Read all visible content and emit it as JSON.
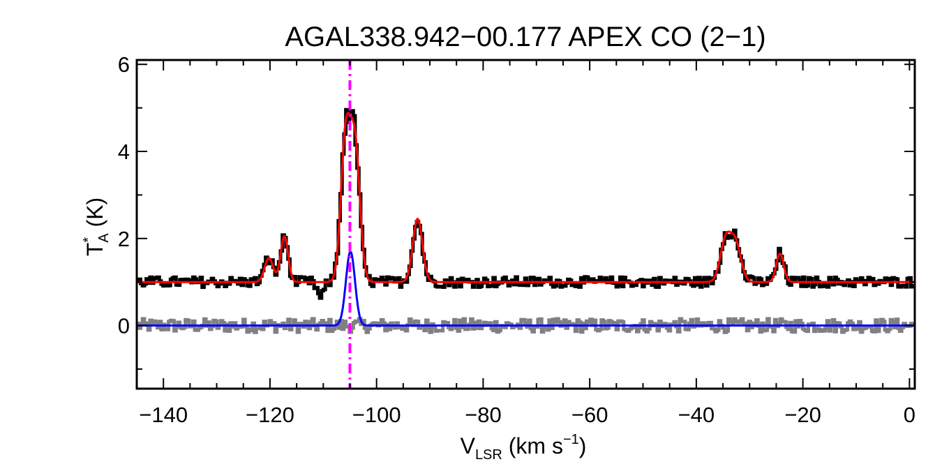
{
  "chart_data": {
    "type": "line",
    "title": "AGAL338.942−00.177  APEX CO (2−1)",
    "xlabel": {
      "main": "V",
      "sub": "LSR",
      "rest": " (km s",
      "sup": "−1",
      "close": ")"
    },
    "ylabel": {
      "main": "T",
      "sup": "*",
      "sub": "A",
      "rest": " (K)"
    },
    "xlim": [
      -145,
      1
    ],
    "ylim": [
      -1.45,
      6.1
    ],
    "xticks": [
      -140,
      -120,
      -100,
      -80,
      -60,
      -40,
      -20,
      0
    ],
    "xtick_labels": [
      "−140",
      "−120",
      "−100",
      "−80",
      "−60",
      "−40",
      "−20",
      "0"
    ],
    "yticks": [
      0,
      2,
      4,
      6
    ],
    "ytick_labels": [
      "0",
      "2",
      "4",
      "6"
    ],
    "vertical_marker": {
      "x": -105,
      "color": "#ff00ff",
      "style": "dash-dot"
    },
    "colors": {
      "spectrum": "#000000",
      "fit": "#ff0000",
      "residual": "#808080",
      "component": "#0000ff",
      "marker": "#ff00ff"
    },
    "series": [
      {
        "role": "spectrum",
        "offset": 1.0,
        "noise": 0.12,
        "components": [
          {
            "center": -120.2,
            "amp": 0.55,
            "sigma": 0.8
          },
          {
            "center": -117.3,
            "amp": 1.05,
            "sigma": 0.7
          },
          {
            "center": -105.8,
            "amp": 3.3,
            "sigma": 0.9
          },
          {
            "center": -104.0,
            "amp": 3.0,
            "sigma": 0.9
          },
          {
            "center": -92.3,
            "amp": 1.45,
            "sigma": 0.9
          },
          {
            "center": -34.5,
            "amp": 0.95,
            "sigma": 1.0
          },
          {
            "center": -32.6,
            "amp": 0.85,
            "sigma": 1.0
          },
          {
            "center": -24.3,
            "amp": 0.65,
            "sigma": 0.7
          }
        ],
        "dips": [
          {
            "center": -110.5,
            "amp": -0.35,
            "sigma": 0.6
          }
        ]
      },
      {
        "role": "fit",
        "offset": 1.0,
        "components": [
          {
            "center": -120.2,
            "amp": 0.55,
            "sigma": 0.8
          },
          {
            "center": -117.3,
            "amp": 1.05,
            "sigma": 0.7
          },
          {
            "center": -105.8,
            "amp": 3.3,
            "sigma": 0.9
          },
          {
            "center": -104.0,
            "amp": 3.0,
            "sigma": 0.9
          },
          {
            "center": -92.3,
            "amp": 1.45,
            "sigma": 0.9
          },
          {
            "center": -34.5,
            "amp": 0.95,
            "sigma": 1.0
          },
          {
            "center": -32.6,
            "amp": 0.85,
            "sigma": 1.0
          },
          {
            "center": -24.3,
            "amp": 0.65,
            "sigma": 0.7
          }
        ]
      },
      {
        "role": "residual",
        "offset": 0.0,
        "noise": 0.13
      },
      {
        "role": "component",
        "offset": 0.0,
        "components": [
          {
            "center": -104.9,
            "amp": 1.7,
            "sigma": 0.85
          }
        ]
      }
    ]
  }
}
